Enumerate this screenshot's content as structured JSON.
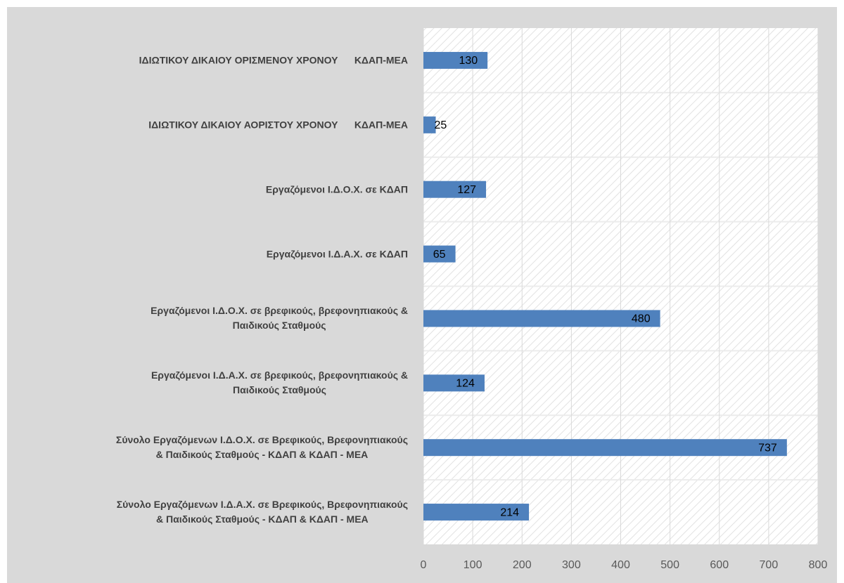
{
  "chart_data": {
    "type": "barh",
    "categories": [
      "ΙΔΙΩΤΙΚΟΥ ΔΙΚΑΙΟΥ ΟΡΙΣΜΕΝΟΥ ΧΡΟΝΟΥ      ΚΔΑΠ-ΜΕΑ",
      "ΙΔΙΩΤΙΚΟΥ ΔΙΚΑΙΟΥ ΑΟΡΙΣΤΟΥ ΧΡΟΝΟΥ      ΚΔΑΠ-ΜΕΑ",
      "Εργαζόμενοι Ι.Δ.Ο.Χ. σε ΚΔΑΠ",
      "Εργαζόμενοι Ι.Δ.Α.Χ. σε ΚΔΑΠ",
      "Εργαζόμενοι Ι.Δ.Ο.Χ. σε βρεφικούς, βρεφονηπιακούς &\nΠαιδικούς Σταθμούς",
      "Εργαζόμενοι Ι.Δ.Α.Χ. σε βρεφικούς, βρεφονηπιακούς &\nΠαιδικούς Σταθμούς",
      "Σύνολο Εργαζόμενων Ι.Δ.Ο.Χ. σε Βρεφικούς, Βρεφονηπιακούς\n& Παιδικούς Σταθμούς - ΚΔΑΠ & ΚΔΑΠ - ΜΕΑ",
      "Σύνολο Εργαζόμενων Ι.Δ.Α.Χ. σε Βρεφικούς, Βρεφονηπιακούς\n& Παιδικούς Σταθμούς - ΚΔΑΠ & ΚΔΑΠ - ΜΕΑ"
    ],
    "values": [
      130,
      25,
      127,
      65,
      480,
      124,
      737,
      214
    ],
    "color": "#4f81bd",
    "xlim": [
      0,
      800
    ],
    "xticks": [
      0,
      100,
      200,
      300,
      400,
      500,
      600,
      700,
      800
    ],
    "grid": true
  }
}
